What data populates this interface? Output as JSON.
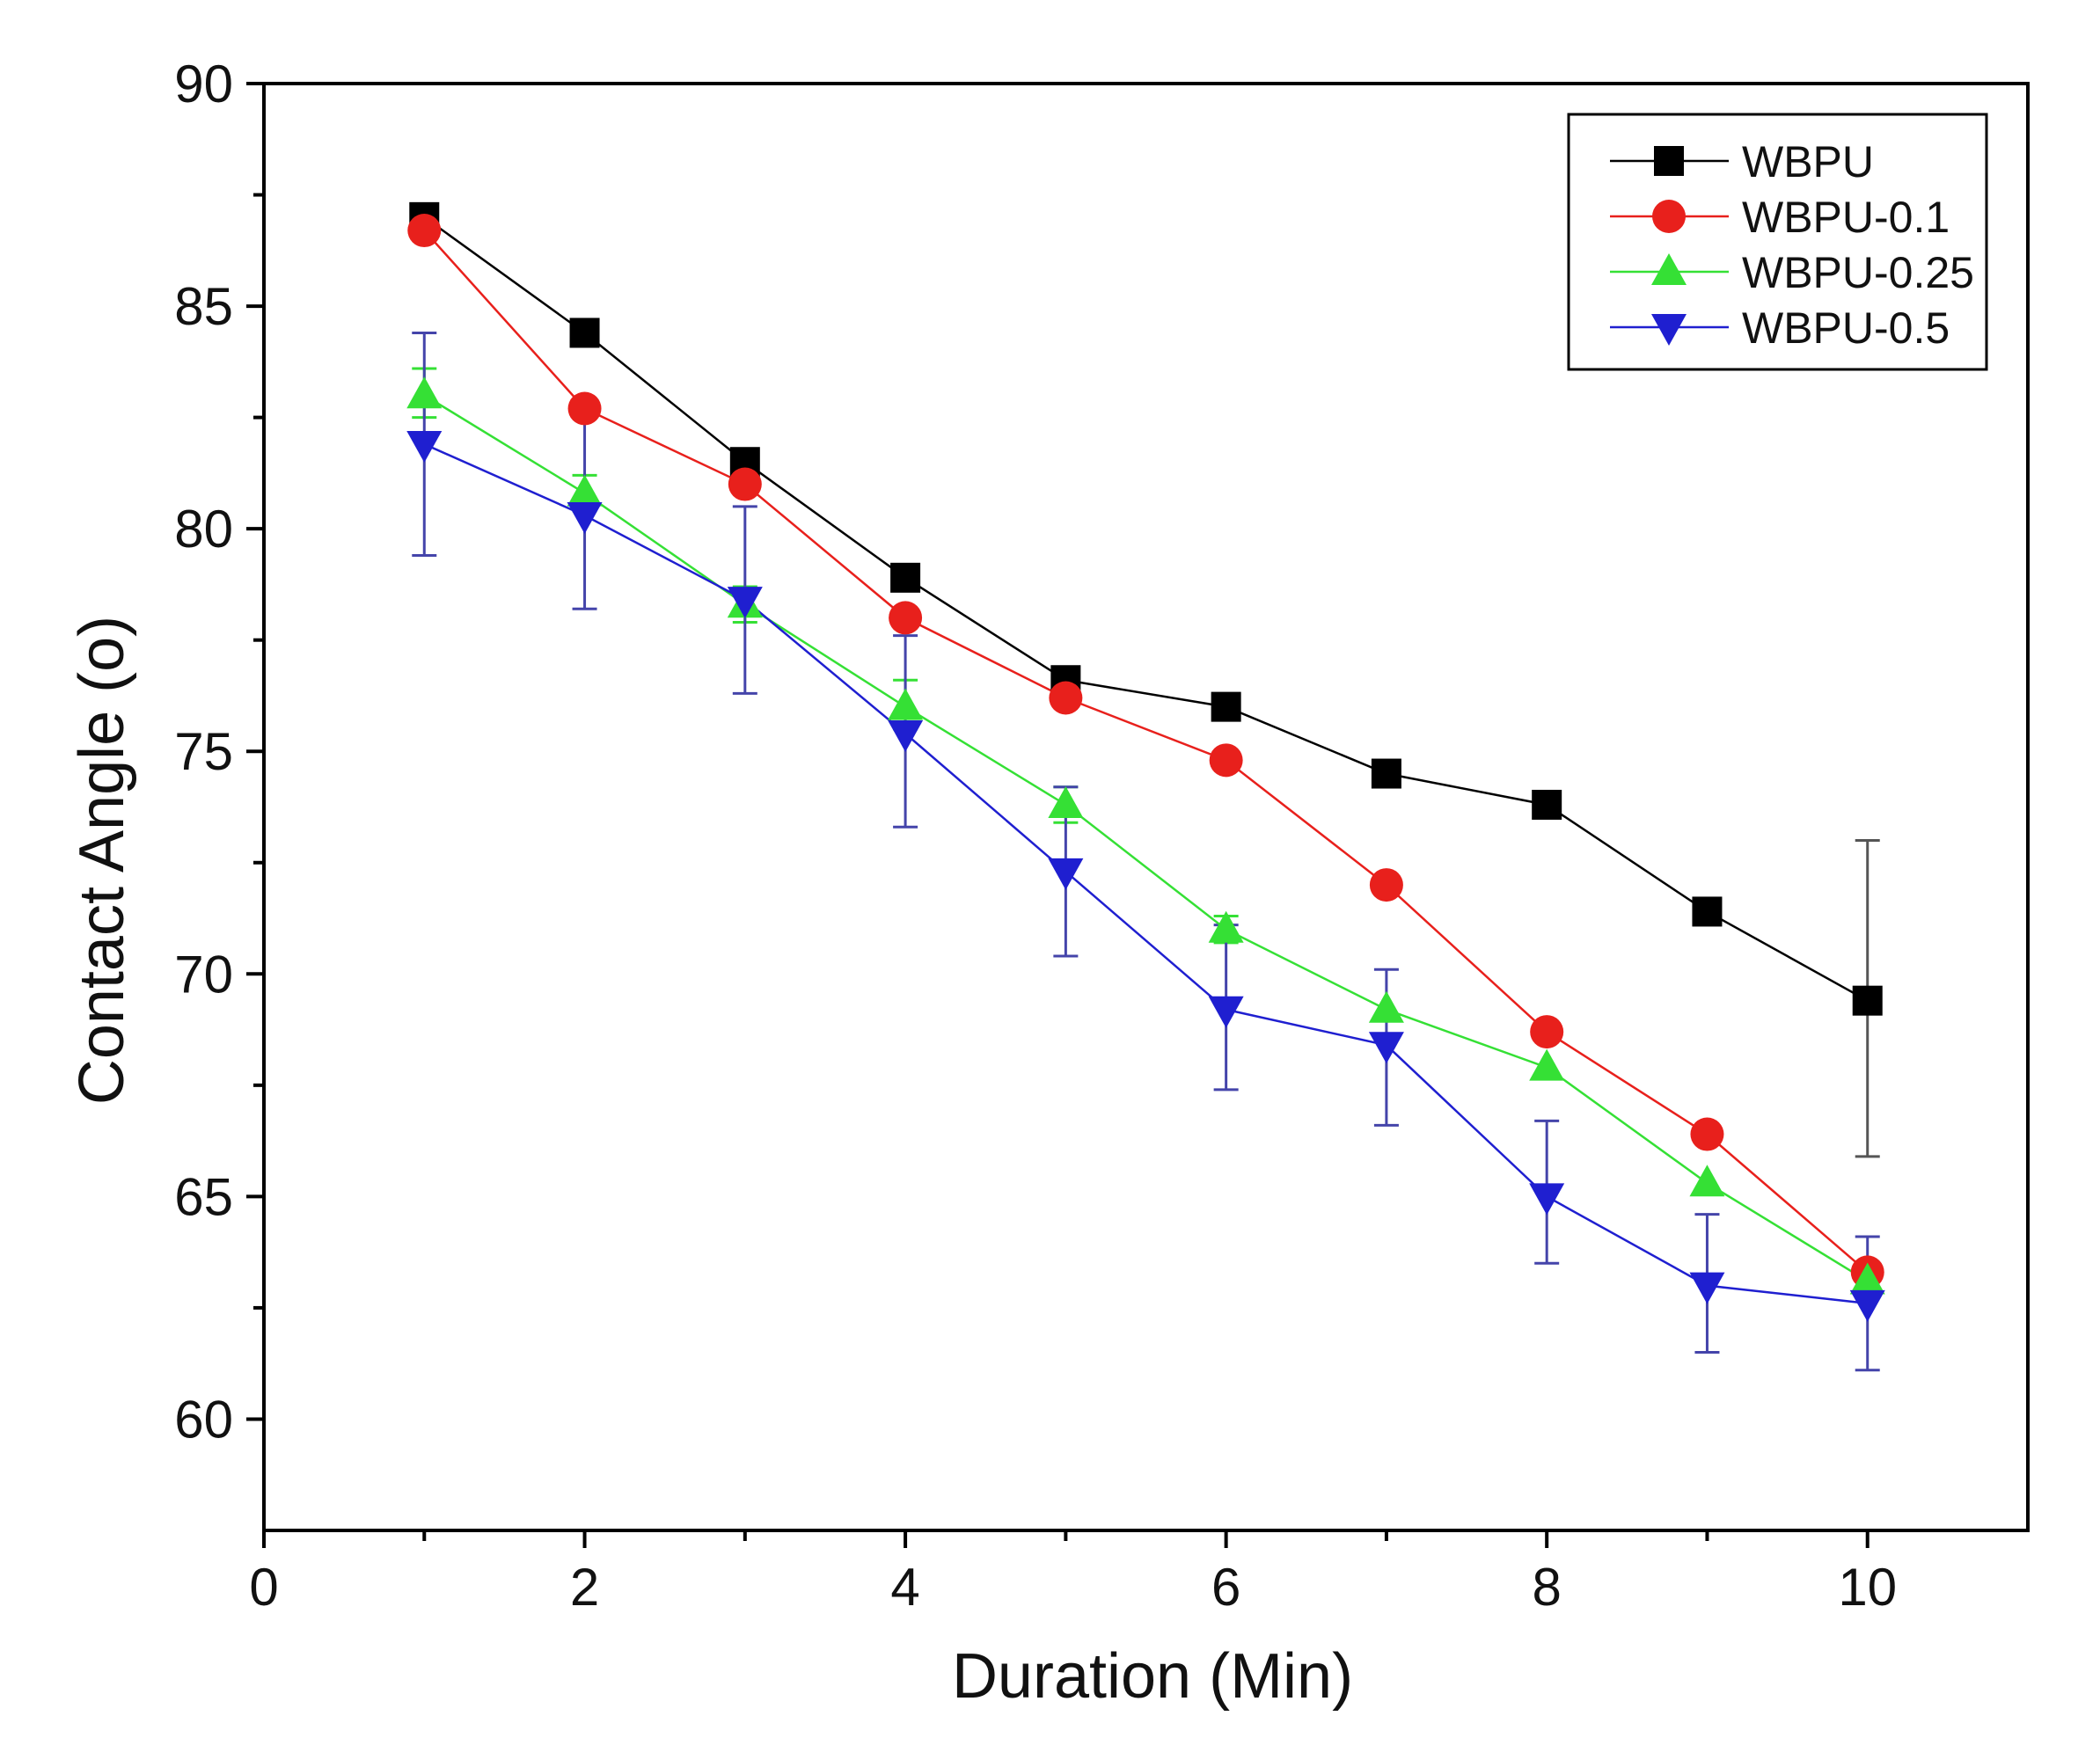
{
  "chart_data": {
    "type": "line",
    "xlabel": "Duration (Min)",
    "ylabel": "Contact Angle (o)",
    "xlim": [
      0,
      11
    ],
    "ylim": [
      57.5,
      90
    ],
    "x_ticks": [
      0,
      2,
      4,
      6,
      8,
      10
    ],
    "x_minor_ticks": [
      1,
      3,
      5,
      7,
      9
    ],
    "y_ticks": [
      60,
      65,
      70,
      75,
      80,
      85,
      90
    ],
    "legend_position": "top-right",
    "x": [
      1,
      2,
      3,
      4,
      5,
      6,
      7,
      8,
      9,
      10
    ],
    "series": [
      {
        "name": "WBPU",
        "color": "#000000",
        "marker": "square",
        "values": [
          87.0,
          84.4,
          81.5,
          78.9,
          76.6,
          76.0,
          74.5,
          73.8,
          71.4,
          69.4
        ],
        "errors": [
          null,
          null,
          null,
          null,
          null,
          null,
          null,
          null,
          null,
          [
            65.9,
            73.0
          ]
        ]
      },
      {
        "name": "WBPU-0.1",
        "color": "#e8201c",
        "marker": "circle",
        "values": [
          86.7,
          82.7,
          81.0,
          78.0,
          76.2,
          74.8,
          72.0,
          68.7,
          66.4,
          63.3
        ],
        "errors": [
          null,
          null,
          null,
          null,
          null,
          null,
          null,
          null,
          null,
          null
        ]
      },
      {
        "name": "WBPU-0.25",
        "color": "#35e035",
        "marker": "triangle-up",
        "values": [
          83.0,
          80.8,
          78.3,
          76.0,
          73.8,
          71.0,
          69.2,
          67.9,
          65.3,
          63.1
        ],
        "errors": [
          [
            82.5,
            83.6
          ],
          [
            80.4,
            81.2
          ],
          [
            77.9,
            78.7
          ],
          [
            75.5,
            76.6
          ],
          [
            73.4,
            74.2
          ],
          [
            70.7,
            71.3
          ],
          [
            null,
            null
          ],
          [
            null,
            null
          ],
          [
            null,
            null
          ],
          [
            null,
            null
          ]
        ]
      },
      {
        "name": "WBPU-0.5",
        "color": "#1f1fd0",
        "marker": "triangle-down",
        "values": [
          81.9,
          80.3,
          78.4,
          75.4,
          72.3,
          69.2,
          68.4,
          65.0,
          63.0,
          62.6
        ],
        "errors": [
          [
            79.4,
            84.4
          ],
          [
            78.2,
            82.6
          ],
          [
            76.3,
            80.5
          ],
          [
            73.3,
            77.6
          ],
          [
            70.4,
            74.2
          ],
          [
            67.4,
            71.1
          ],
          [
            66.6,
            70.1
          ],
          [
            63.5,
            66.7
          ],
          [
            61.5,
            64.6
          ],
          [
            61.1,
            64.1
          ]
        ]
      }
    ]
  }
}
